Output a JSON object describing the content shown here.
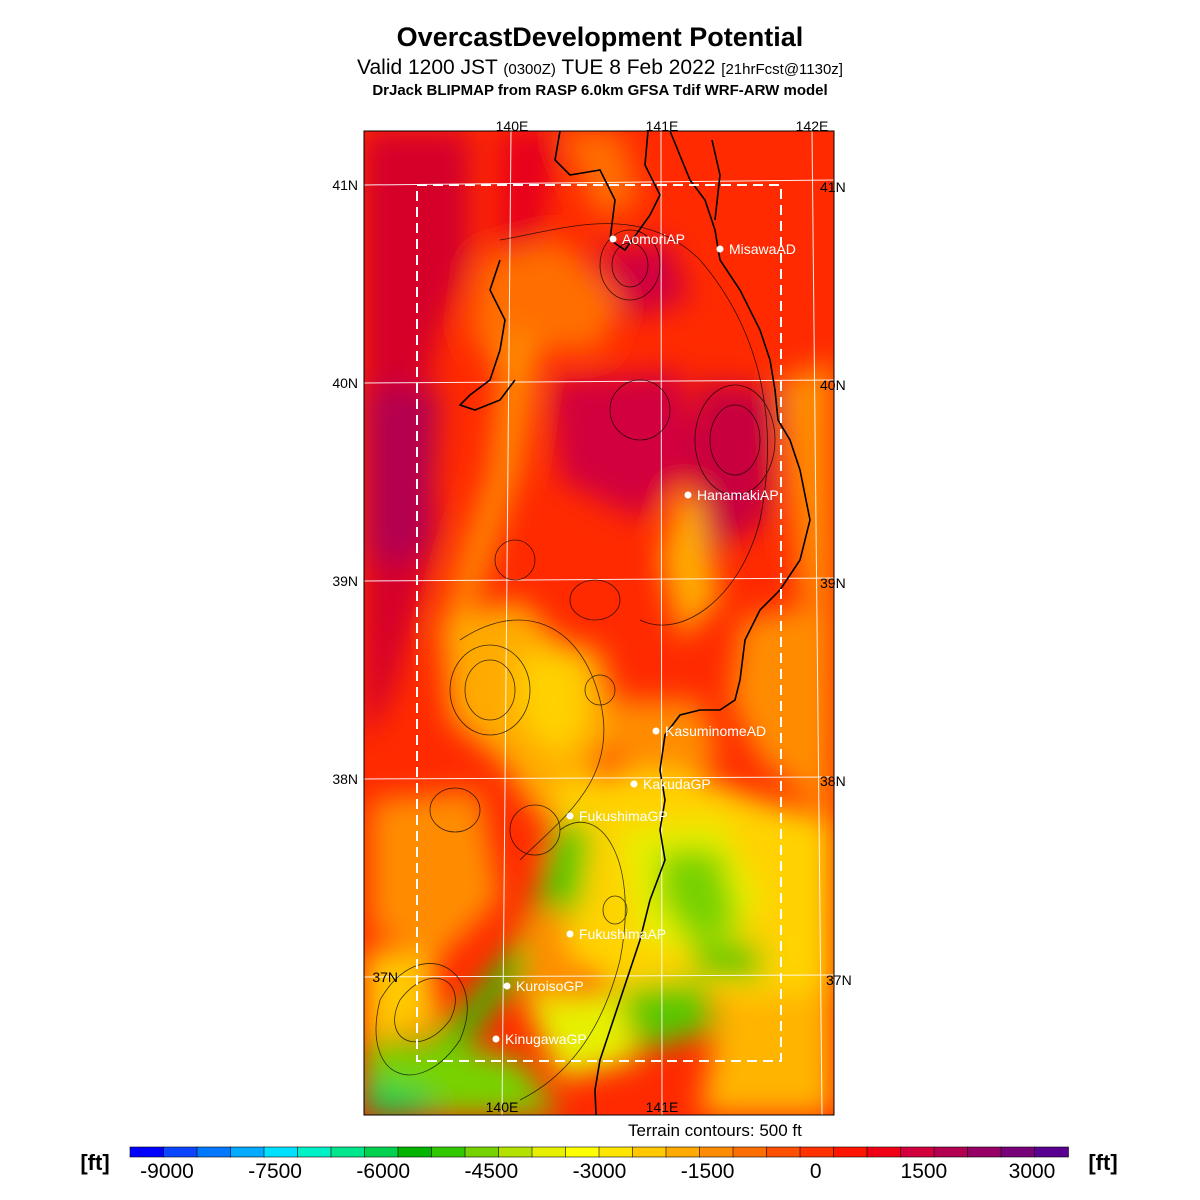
{
  "header": {
    "title": "OvercastDevelopment Potential",
    "valid_prefix": "Valid 1200 JST",
    "valid_utc": "(0300Z)",
    "valid_date": "TUE 8 Feb 2022",
    "forecast": "[21hrFcst@1130z]",
    "model": "DrJack BLIPMAP from RASP 6.0km GFSA Tdif WRF-ARW model"
  },
  "map": {
    "lon_labels_top": [
      "140E",
      "141E",
      "142E"
    ],
    "lon_labels_bottom": [
      "140E",
      "141E"
    ],
    "lat_labels_left": [
      "41N",
      "40N",
      "39N",
      "38N",
      "37N"
    ],
    "lat_labels_right": [
      "41N",
      "40N",
      "39N",
      "38N",
      "37N"
    ],
    "stations": [
      {
        "name": "AomoriAP"
      },
      {
        "name": "MisawaAD"
      },
      {
        "name": "HanamakiAP"
      },
      {
        "name": "KasuminomeAD"
      },
      {
        "name": "KakudaGP"
      },
      {
        "name": "FukushimaGP"
      },
      {
        "name": "FukushimaAP"
      },
      {
        "name": "KuroisoGP"
      },
      {
        "name": "KinugawaGP"
      }
    ]
  },
  "terrain_note": "Terrain contours: 500 ft",
  "colorbar": {
    "unit_left": "[ft]",
    "unit_right": "[ft]",
    "tick_labels": [
      "-9000",
      "-7500",
      "-6000",
      "-4500",
      "-3000",
      "-1500",
      "0",
      "1500",
      "3000"
    ],
    "colors": [
      "#0000ff",
      "#0a46ff",
      "#0078ff",
      "#00aaff",
      "#00e1ff",
      "#00f0c8",
      "#00e68c",
      "#00d250",
      "#00b400",
      "#32c800",
      "#78d200",
      "#b4e100",
      "#e6f000",
      "#ffff00",
      "#ffe600",
      "#ffc800",
      "#ffaa00",
      "#ff8c00",
      "#ff6e00",
      "#ff5000",
      "#ff3200",
      "#ff1400",
      "#f00014",
      "#d2003c",
      "#b40050",
      "#960064",
      "#780078",
      "#5a0091"
    ]
  },
  "colors": {
    "field_base": "#ff2a00",
    "ocean_west": "#d40030",
    "lowland_orange": "#ff8c00",
    "yellow": "#ffe600",
    "green": "#5ac800"
  }
}
